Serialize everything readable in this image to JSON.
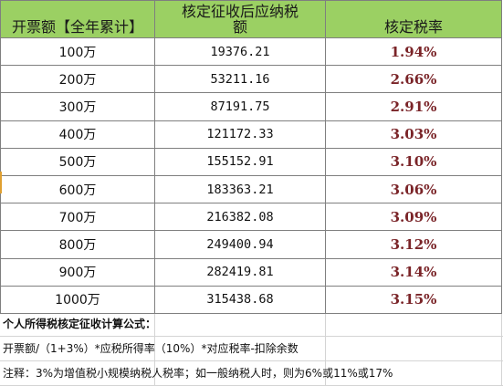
{
  "table": {
    "headers": {
      "amount_line": "开票额【全年累计】",
      "tax_line1": "核定征收后应纳税",
      "tax_line2": "额",
      "rate": "核定税率"
    },
    "rows": [
      {
        "amount": "100万",
        "tax": "19376.21",
        "rate": "1.94%"
      },
      {
        "amount": "200万",
        "tax": "53211.16",
        "rate": "2.66%"
      },
      {
        "amount": "300万",
        "tax": "87191.75",
        "rate": "2.91%"
      },
      {
        "amount": "400万",
        "tax": "121172.33",
        "rate": "3.03%"
      },
      {
        "amount": "500万",
        "tax": "155152.91",
        "rate": "3.10%"
      },
      {
        "amount": "600万",
        "tax": "183363.21",
        "rate": "3.06%"
      },
      {
        "amount": "700万",
        "tax": "216382.08",
        "rate": "3.09%"
      },
      {
        "amount": "800万",
        "tax": "249400.94",
        "rate": "3.12%"
      },
      {
        "amount": "900万",
        "tax": "282419.81",
        "rate": "3.14%"
      },
      {
        "amount": "1000万",
        "tax": "315438.68",
        "rate": "3.15%"
      }
    ]
  },
  "notes": {
    "title": "个人所得税核定征收计算公式：",
    "formula": "开票额/（1+3%）*应税所得率（10%）*对应税率-扣除余数",
    "remark": "注释：3%为增值税小规模纳税人税率；如一般纳税人时，则为6%或11%或17%"
  },
  "colors": {
    "header_bg": "#9bd063",
    "rate_text": "#7a2428",
    "border": "#7f7f7f"
  }
}
